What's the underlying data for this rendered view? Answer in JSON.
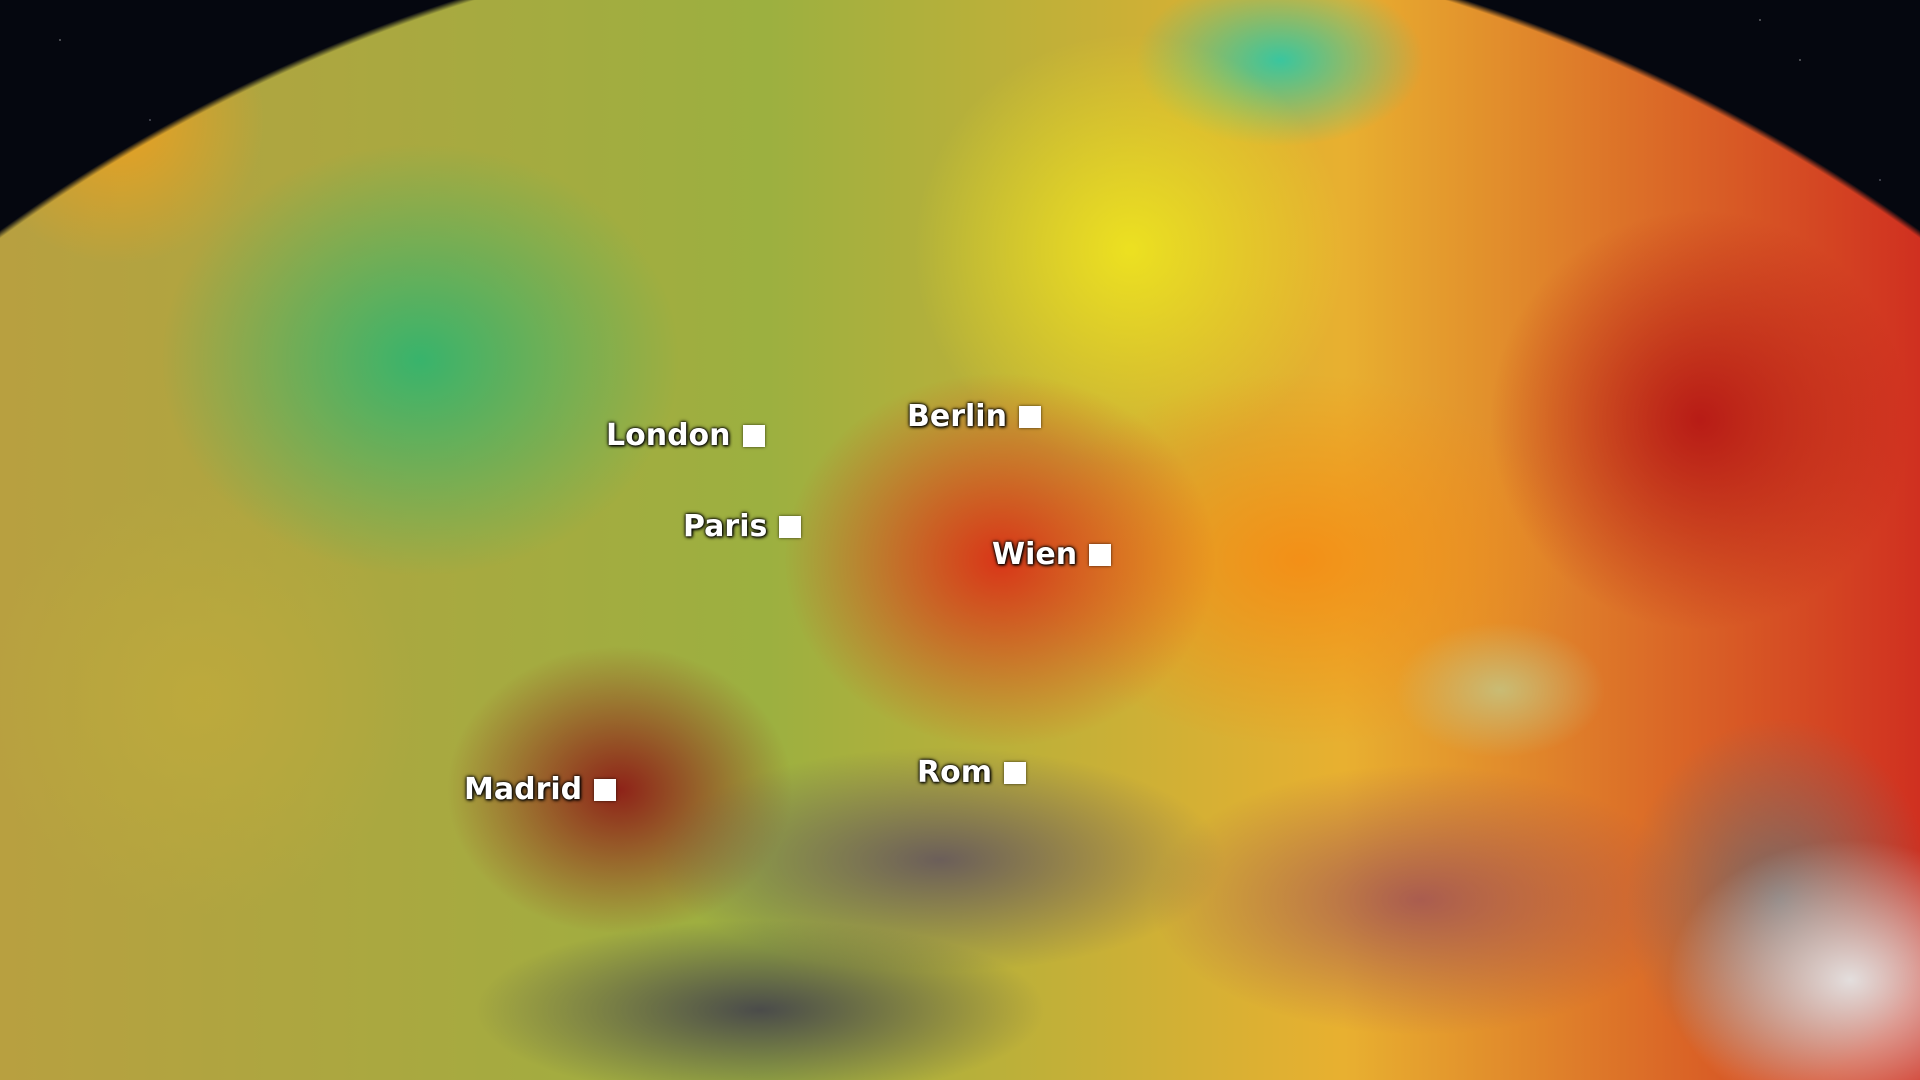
{
  "map": {
    "colors": {
      "cool": "#3cb878",
      "mild": "#e8e020",
      "warm": "#f08a1c",
      "hot": "#d8281c",
      "very_hot": "#7a1010",
      "space": "#05070f"
    },
    "cities": [
      {
        "name": "London",
        "marker": "square-marker-icon"
      },
      {
        "name": "Berlin",
        "marker": "square-marker-icon"
      },
      {
        "name": "Paris",
        "marker": "square-marker-icon"
      },
      {
        "name": "Wien",
        "marker": "square-marker-icon"
      },
      {
        "name": "Madrid",
        "marker": "square-marker-icon"
      },
      {
        "name": "Rom",
        "marker": "square-marker-icon"
      }
    ]
  }
}
